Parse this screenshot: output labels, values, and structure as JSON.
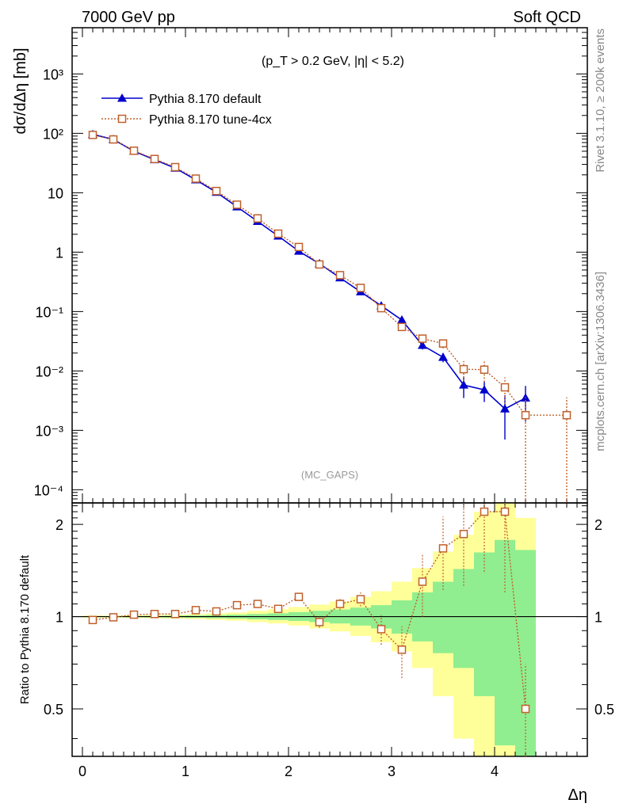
{
  "header": {
    "left": "7000 GeV pp",
    "right": "Soft QCD"
  },
  "side_labels": {
    "rivet": "Rivet 3.1.10, ≥ 200k events",
    "mcplots": "mcplots.cern.ch [arXiv:1306.3436]"
  },
  "chart_data": [
    {
      "type": "line",
      "panel": "main",
      "cut_label": "(p_T > 0.2 GeV, |η| < 5.2)",
      "analysis_label": "(MC_GAPS)",
      "ylabel": "dσ/dΔη [mb]",
      "yscale": "log",
      "ylim": [
        6e-05,
        6000
      ],
      "xlim": [
        -0.1,
        4.9
      ],
      "x_ticks": [
        "0",
        "1",
        "2",
        "3",
        "4"
      ],
      "y_ticks": [
        "10⁻⁴",
        "10⁻³",
        "10⁻²",
        "10⁻¹",
        "1",
        "10",
        "10²",
        "10³"
      ],
      "legend_position": "top-left",
      "series": [
        {
          "name": "Pythia 8.170 default",
          "color": "#0000cc",
          "marker": "triangle",
          "x": [
            0.1,
            0.3,
            0.5,
            0.7,
            0.9,
            1.1,
            1.3,
            1.5,
            1.7,
            1.9,
            2.1,
            2.3,
            2.5,
            2.7,
            2.9,
            3.1,
            3.3,
            3.5,
            3.7,
            3.9,
            4.1,
            4.3
          ],
          "y": [
            96,
            79,
            50,
            36,
            26,
            16.5,
            10.2,
            5.8,
            3.3,
            1.87,
            1.04,
            0.64,
            0.37,
            0.215,
            0.125,
            0.072,
            0.027,
            0.017,
            0.0058,
            0.0048,
            0.0023,
            0.0035
          ],
          "err": [
            2,
            1.6,
            1.0,
            0.7,
            0.5,
            0.35,
            0.2,
            0.12,
            0.07,
            0.04,
            0.03,
            0.02,
            0.012,
            0.009,
            0.007,
            0.006,
            0.004,
            0.003,
            0.0023,
            0.0018,
            0.0016,
            0.0021
          ]
        },
        {
          "name": "Pythia 8.170 tune-4cx",
          "color": "#c0602a",
          "marker": "open-square",
          "x": [
            0.1,
            0.3,
            0.5,
            0.7,
            0.9,
            1.1,
            1.3,
            1.5,
            1.7,
            1.9,
            2.1,
            2.3,
            2.5,
            2.7,
            2.9,
            3.1,
            3.3,
            3.5,
            3.7,
            3.9,
            4.1,
            4.3,
            4.7
          ],
          "y": [
            94,
            79,
            51,
            37,
            27,
            17.3,
            10.7,
            6.3,
            3.7,
            2.05,
            1.22,
            0.62,
            0.41,
            0.25,
            0.114,
            0.055,
            0.035,
            0.029,
            0.0107,
            0.0105,
            0.0053,
            0.0018,
            0.0018
          ],
          "err": [
            2,
            1.6,
            1.0,
            0.8,
            0.6,
            0.4,
            0.25,
            0.15,
            0.09,
            0.05,
            0.04,
            0.03,
            0.02,
            0.015,
            0.01,
            0.008,
            0.006,
            0.005,
            0.004,
            0.004,
            0.0025,
            0.0018,
            0.0018
          ]
        }
      ]
    },
    {
      "type": "line",
      "panel": "ratio",
      "ylabel": "Ratio to Pythia 8.170 default",
      "xlabel": "Δη",
      "yscale": "log",
      "ylim": [
        0.35,
        2.35
      ],
      "xlim": [
        -0.1,
        4.9
      ],
      "x_ticks": [
        "0",
        "1",
        "2",
        "3",
        "4"
      ],
      "y_ticks": [
        "0.5",
        "1",
        "2"
      ],
      "reference_line": 1,
      "bands": {
        "bin_edges": [
          0.0,
          0.2,
          0.4,
          0.6,
          0.8,
          1.0,
          1.2,
          1.4,
          1.6,
          1.8,
          2.0,
          2.2,
          2.4,
          2.6,
          2.8,
          3.0,
          3.2,
          3.4,
          3.6,
          3.8,
          4.0,
          4.2,
          4.4
        ],
        "inner": {
          "color": "#90ee90",
          "lo": [
            0.996,
            0.996,
            0.995,
            0.994,
            0.993,
            0.991,
            0.988,
            0.985,
            0.98,
            0.975,
            0.968,
            0.96,
            0.95,
            0.935,
            0.915,
            0.88,
            0.83,
            0.76,
            0.68,
            0.55,
            0.38,
            0.33
          ],
          "hi": [
            1.004,
            1.004,
            1.005,
            1.006,
            1.007,
            1.009,
            1.012,
            1.015,
            1.02,
            1.025,
            1.035,
            1.045,
            1.055,
            1.07,
            1.09,
            1.13,
            1.2,
            1.3,
            1.43,
            1.62,
            1.78,
            1.65
          ]
        },
        "outer": {
          "color": "#ffff99",
          "lo": [
            0.992,
            0.992,
            0.99,
            0.988,
            0.985,
            0.982,
            0.976,
            0.97,
            0.96,
            0.95,
            0.935,
            0.915,
            0.895,
            0.865,
            0.825,
            0.77,
            0.68,
            0.55,
            0.4,
            0.35,
            0.35,
            0.35
          ],
          "hi": [
            1.008,
            1.008,
            1.01,
            1.012,
            1.015,
            1.018,
            1.025,
            1.032,
            1.045,
            1.058,
            1.075,
            1.095,
            1.12,
            1.16,
            1.21,
            1.3,
            1.44,
            1.63,
            1.85,
            2.2,
            2.35,
            2.1
          ]
        }
      },
      "series": [
        {
          "name": "Pythia 8.170 tune-4cx",
          "color": "#c0602a",
          "marker": "open-square",
          "x": [
            0.1,
            0.3,
            0.5,
            0.7,
            0.9,
            1.1,
            1.3,
            1.5,
            1.7,
            1.9,
            2.1,
            2.3,
            2.5,
            2.7,
            2.9,
            3.1,
            3.3,
            3.5,
            3.7,
            3.9,
            4.1,
            4.3
          ],
          "y": [
            0.975,
            0.995,
            1.015,
            1.02,
            1.02,
            1.05,
            1.04,
            1.09,
            1.1,
            1.06,
            1.16,
            0.96,
            1.1,
            1.14,
            0.91,
            0.78,
            1.3,
            1.67,
            1.86,
            2.2,
            2.2,
            0.5
          ],
          "err_lo": [
            0.01,
            0.01,
            0.01,
            0.01,
            0.01,
            0.01,
            0.01,
            0.015,
            0.015,
            0.02,
            0.03,
            0.04,
            0.05,
            0.06,
            0.1,
            0.15,
            0.3,
            0.45,
            0.6,
            0.8,
            1.0,
            0.2
          ],
          "err_hi": [
            0.01,
            0.01,
            0.01,
            0.01,
            0.01,
            0.01,
            0.01,
            0.015,
            0.015,
            0.02,
            0.03,
            0.04,
            0.05,
            0.06,
            0.1,
            0.15,
            0.3,
            0.45,
            0.6,
            0.8,
            1.0,
            0.2
          ]
        }
      ]
    }
  ]
}
